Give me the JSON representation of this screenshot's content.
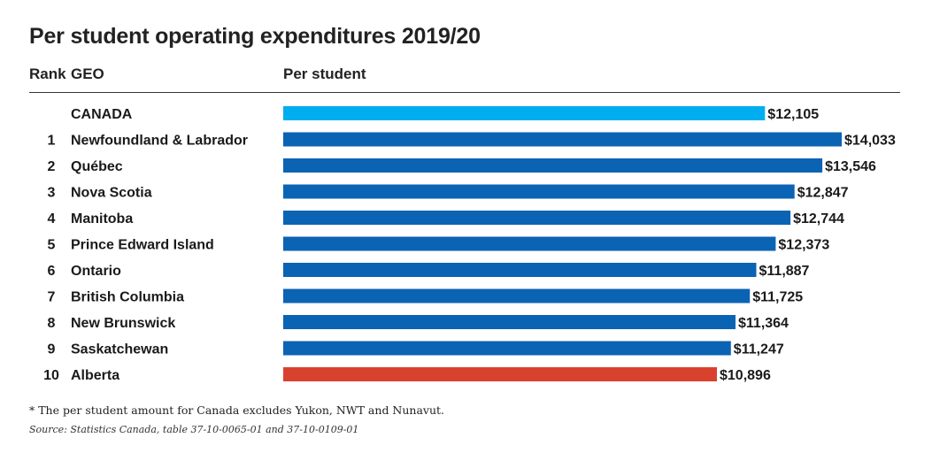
{
  "title": "Per student operating expenditures 2019/20",
  "headers": {
    "rank": "Rank",
    "geo": "GEO",
    "per_student": "Per student"
  },
  "chart_data": {
    "type": "bar",
    "orientation": "horizontal",
    "title": "Per student operating expenditures 2019/20",
    "xlabel": "Per student",
    "ylabel": "GEO",
    "xlim": [
      0,
      15500
    ],
    "grid": false,
    "legend": "none",
    "series": [
      {
        "values": [
          12105,
          14033,
          13546,
          12847,
          12744,
          12373,
          11887,
          11725,
          11364,
          11247,
          10896
        ]
      }
    ],
    "rows": [
      {
        "rank": "",
        "geo": "CANADA",
        "value": 12105,
        "label": "$12,105",
        "color": "#00aeef"
      },
      {
        "rank": "1",
        "geo": "Newfoundland & Labrador",
        "value": 14033,
        "label": "$14,033",
        "color": "#0b63b4"
      },
      {
        "rank": "2",
        "geo": "Québec",
        "value": 13546,
        "label": "$13,546",
        "color": "#0b63b4"
      },
      {
        "rank": "3",
        "geo": "Nova Scotia",
        "value": 12847,
        "label": "$12,847",
        "color": "#0b63b4"
      },
      {
        "rank": "4",
        "geo": "Manitoba",
        "value": 12744,
        "label": "$12,744",
        "color": "#0b63b4"
      },
      {
        "rank": "5",
        "geo": "Prince Edward Island",
        "value": 12373,
        "label": "$12,373",
        "color": "#0b63b4"
      },
      {
        "rank": "6",
        "geo": "Ontario",
        "value": 11887,
        "label": "$11,887",
        "color": "#0b63b4"
      },
      {
        "rank": "7",
        "geo": "British Columbia",
        "value": 11725,
        "label": "$11,725",
        "color": "#0b63b4"
      },
      {
        "rank": "8",
        "geo": "New Brunswick",
        "value": 11364,
        "label": "$11,364",
        "color": "#0b63b4"
      },
      {
        "rank": "9",
        "geo": "Saskatchewan",
        "value": 11247,
        "label": "$11,247",
        "color": "#0b63b4"
      },
      {
        "rank": "10",
        "geo": "Alberta",
        "value": 10896,
        "label": "$10,896",
        "color": "#d9412f"
      }
    ],
    "colors": {
      "canada": "#00aeef",
      "province": "#0b63b4",
      "lowest": "#d9412f"
    }
  },
  "footnote": "* The per student amount for Canada excludes Yukon, NWT and Nunavut.",
  "source": "Source: Statistics Canada, table 37-10-0065-01 and 37-10-0109-01"
}
